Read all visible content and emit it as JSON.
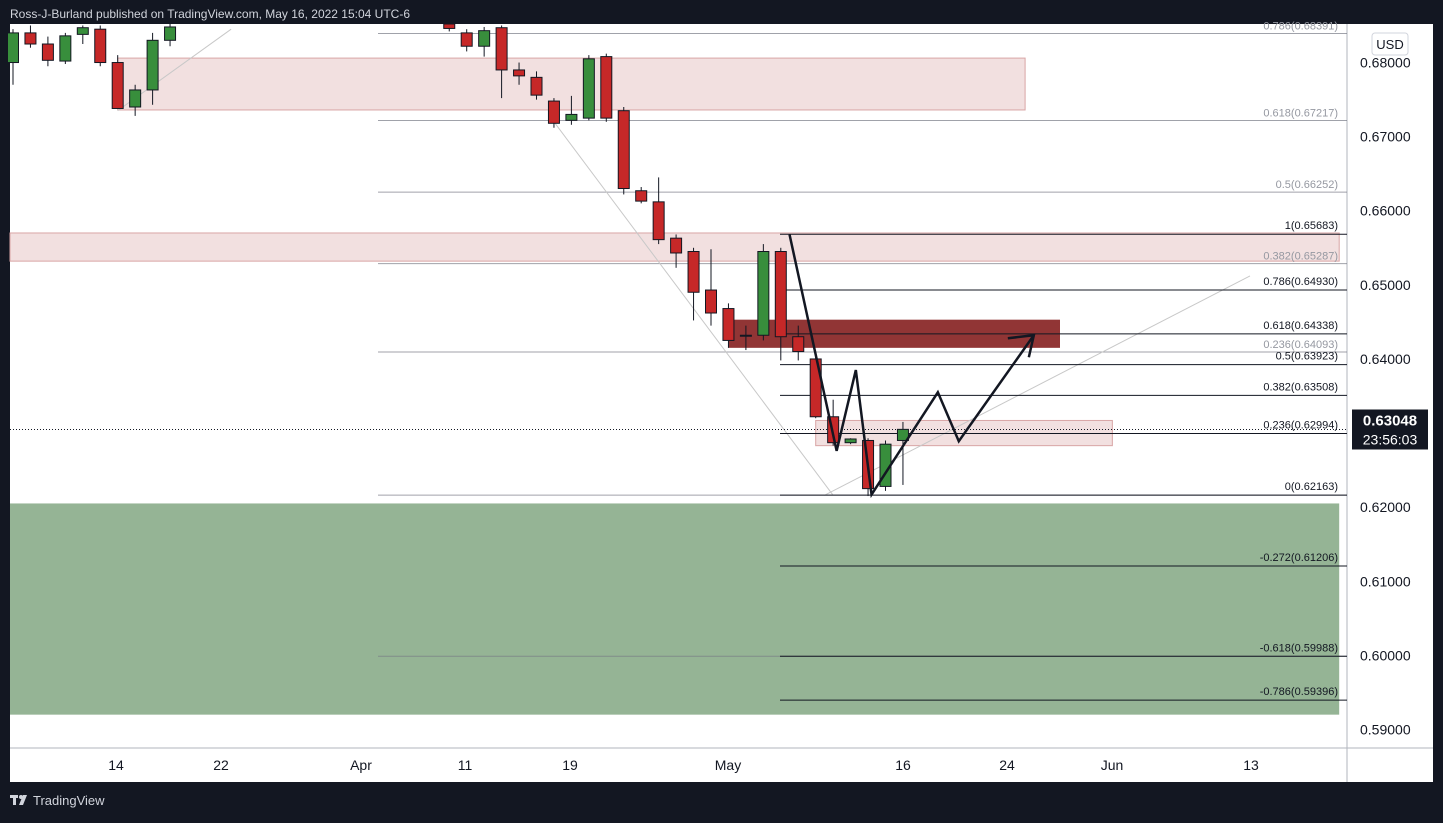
{
  "header": {
    "caption": "Ross-J-Burland published on TradingView.com, May 16, 2022 15:04 UTC-6"
  },
  "footer": {
    "logo_text": "TradingView",
    "logo_icon": "tradingview-logo-icon"
  },
  "colors": {
    "bull": "#388e3c",
    "bear": "#c62828",
    "zone_light": "#e8c6c6",
    "zone_dark": "#8b2a2a",
    "zone_green": "#8fb08f",
    "price_tag": "#131722"
  },
  "chart_data": {
    "type": "candlestick",
    "currency": "USD",
    "current_price": "0.63048",
    "countdown": "23:56:03",
    "ylim": [
      0.5875,
      0.6852
    ],
    "y_ticks": [
      "0.68000",
      "0.67000",
      "0.66000",
      "0.65000",
      "0.64000",
      "0.63000",
      "0.62000",
      "0.61000",
      "0.60000",
      "0.59000"
    ],
    "x_ticks": [
      "14",
      "22",
      "Apr",
      "11",
      "19",
      "May",
      "16",
      "24",
      "Jun",
      "13"
    ],
    "candles": [
      {
        "t": 0.0,
        "o": 0.68,
        "h": 0.6845,
        "l": 0.677,
        "c": 0.684
      },
      {
        "t": 1.0,
        "o": 0.684,
        "h": 0.685,
        "l": 0.682,
        "c": 0.6825
      },
      {
        "t": 2.0,
        "o": 0.6825,
        "h": 0.6835,
        "l": 0.6795,
        "c": 0.6803
      },
      {
        "t": 3.0,
        "o": 0.6802,
        "h": 0.684,
        "l": 0.6798,
        "c": 0.6836
      },
      {
        "t": 4.0,
        "o": 0.6838,
        "h": 0.685,
        "l": 0.6825,
        "c": 0.6847
      },
      {
        "t": 5.0,
        "o": 0.6845,
        "h": 0.685,
        "l": 0.6795,
        "c": 0.68
      },
      {
        "t": 6.0,
        "o": 0.68,
        "h": 0.681,
        "l": 0.6745,
        "c": 0.6738
      },
      {
        "t": 7.0,
        "o": 0.674,
        "h": 0.677,
        "l": 0.6728,
        "c": 0.6763
      },
      {
        "t": 8.0,
        "o": 0.6763,
        "h": 0.684,
        "l": 0.6743,
        "c": 0.683
      },
      {
        "t": 9.0,
        "o": 0.683,
        "h": 0.6852,
        "l": 0.6822,
        "c": 0.6848
      },
      {
        "t": 25.0,
        "o": 0.6852,
        "h": 0.6852,
        "l": 0.6842,
        "c": 0.6846
      },
      {
        "t": 26.0,
        "o": 0.684,
        "h": 0.6845,
        "l": 0.6815,
        "c": 0.6822
      },
      {
        "t": 27.0,
        "o": 0.6822,
        "h": 0.6848,
        "l": 0.6808,
        "c": 0.6843
      },
      {
        "t": 28.0,
        "o": 0.6847,
        "h": 0.685,
        "l": 0.6752,
        "c": 0.679
      },
      {
        "t": 29.0,
        "o": 0.679,
        "h": 0.68,
        "l": 0.677,
        "c": 0.6782
      },
      {
        "t": 30.0,
        "o": 0.678,
        "h": 0.6788,
        "l": 0.675,
        "c": 0.6756
      },
      {
        "t": 31.0,
        "o": 0.6748,
        "h": 0.6752,
        "l": 0.6712,
        "c": 0.6718
      },
      {
        "t": 32.0,
        "o": 0.6722,
        "h": 0.6755,
        "l": 0.6716,
        "c": 0.673
      },
      {
        "t": 33.0,
        "o": 0.6725,
        "h": 0.681,
        "l": 0.6722,
        "c": 0.6805
      },
      {
        "t": 34.0,
        "o": 0.6808,
        "h": 0.6812,
        "l": 0.672,
        "c": 0.6725
      },
      {
        "t": 35.0,
        "o": 0.6735,
        "h": 0.674,
        "l": 0.6622,
        "c": 0.663
      },
      {
        "t": 36.0,
        "o": 0.6627,
        "h": 0.6632,
        "l": 0.661,
        "c": 0.6613
      },
      {
        "t": 37.0,
        "o": 0.6612,
        "h": 0.6645,
        "l": 0.6555,
        "c": 0.6561
      },
      {
        "t": 38.0,
        "o": 0.6563,
        "h": 0.6568,
        "l": 0.6523,
        "c": 0.6543
      },
      {
        "t": 39.0,
        "o": 0.6545,
        "h": 0.655,
        "l": 0.6452,
        "c": 0.649
      },
      {
        "t": 40.0,
        "o": 0.6493,
        "h": 0.6548,
        "l": 0.6445,
        "c": 0.6462
      },
      {
        "t": 41.0,
        "o": 0.6468,
        "h": 0.6475,
        "l": 0.6415,
        "c": 0.6425
      },
      {
        "t": 42.0,
        "o": 0.6432,
        "h": 0.6445,
        "l": 0.6412,
        "c": 0.6432
      },
      {
        "t": 43.0,
        "o": 0.6432,
        "h": 0.6555,
        "l": 0.6425,
        "c": 0.6545
      },
      {
        "t": 44.0,
        "o": 0.6545,
        "h": 0.655,
        "l": 0.6398,
        "c": 0.643
      },
      {
        "t": 45.0,
        "o": 0.643,
        "h": 0.6445,
        "l": 0.6398,
        "c": 0.641
      },
      {
        "t": 46.0,
        "o": 0.64,
        "h": 0.641,
        "l": 0.632,
        "c": 0.6322
      },
      {
        "t": 47.0,
        "o": 0.6322,
        "h": 0.6345,
        "l": 0.6283,
        "c": 0.6287
      },
      {
        "t": 48.0,
        "o": 0.6287,
        "h": 0.6293,
        "l": 0.6285,
        "c": 0.6292
      },
      {
        "t": 49.0,
        "o": 0.629,
        "h": 0.6293,
        "l": 0.6215,
        "c": 0.6225
      },
      {
        "t": 50.0,
        "o": 0.6228,
        "h": 0.629,
        "l": 0.6222,
        "c": 0.6285
      },
      {
        "t": 51.0,
        "o": 0.629,
        "h": 0.6315,
        "l": 0.623,
        "c": 0.6305
      }
    ],
    "fib_retracement": [
      {
        "label": "1(0.65683)",
        "value": 0.65683
      },
      {
        "label": "0.786(0.64930)",
        "value": 0.6493
      },
      {
        "label": "0.618(0.64338)",
        "value": 0.64338
      },
      {
        "label": "0.5(0.63923)",
        "value": 0.63923
      },
      {
        "label": "0.382(0.63508)",
        "value": 0.63508
      },
      {
        "label": "0.236(0.62994)",
        "value": 0.62994
      },
      {
        "label": "0(0.62163)",
        "value": 0.62163
      },
      {
        "label": "-0.272(0.61206)",
        "value": 0.61206
      },
      {
        "label": "-0.618(0.59988)",
        "value": 0.59988
      },
      {
        "label": "-0.786(0.59396)",
        "value": 0.59396
      }
    ],
    "fib_background": [
      {
        "label": "0.786(0.68391)",
        "value": 0.68391
      },
      {
        "label": "0.618(0.67217)",
        "value": 0.67217
      },
      {
        "label": "0.5(0.66252)",
        "value": 0.66252
      },
      {
        "label": "0.382(0.65287)",
        "value": 0.65287
      },
      {
        "label": "0.236(0.64093)",
        "value": 0.64093
      },
      {
        "label": "",
        "value": 0.62163
      },
      {
        "label": "",
        "value": 0.59988
      }
    ],
    "zones": [
      {
        "kind": "light",
        "top": 0.6806,
        "bottom": 0.6736,
        "x0": 6.0,
        "x1": 58.0
      },
      {
        "kind": "light",
        "top": 0.657,
        "bottom": 0.6532,
        "x0": -1.0,
        "x1": 76.0
      },
      {
        "kind": "dark",
        "top": 0.6453,
        "bottom": 0.6415,
        "x0": 41.0,
        "x1": 60.0
      },
      {
        "kind": "light",
        "top": 0.6317,
        "bottom": 0.6283,
        "x0": 46.0,
        "x1": 63.0
      },
      {
        "kind": "green",
        "top": 0.6205,
        "bottom": 0.592,
        "x0": -1.0,
        "x1": 76.0
      }
    ],
    "projection_path": [
      {
        "t": 44.5,
        "p": 0.6568
      },
      {
        "t": 47.2,
        "p": 0.6276
      },
      {
        "t": 48.3,
        "p": 0.6385
      },
      {
        "t": 49.2,
        "p": 0.6217
      },
      {
        "t": 53.0,
        "p": 0.6355
      },
      {
        "t": 54.2,
        "p": 0.6289
      },
      {
        "t": 58.5,
        "p": 0.6432
      }
    ]
  }
}
